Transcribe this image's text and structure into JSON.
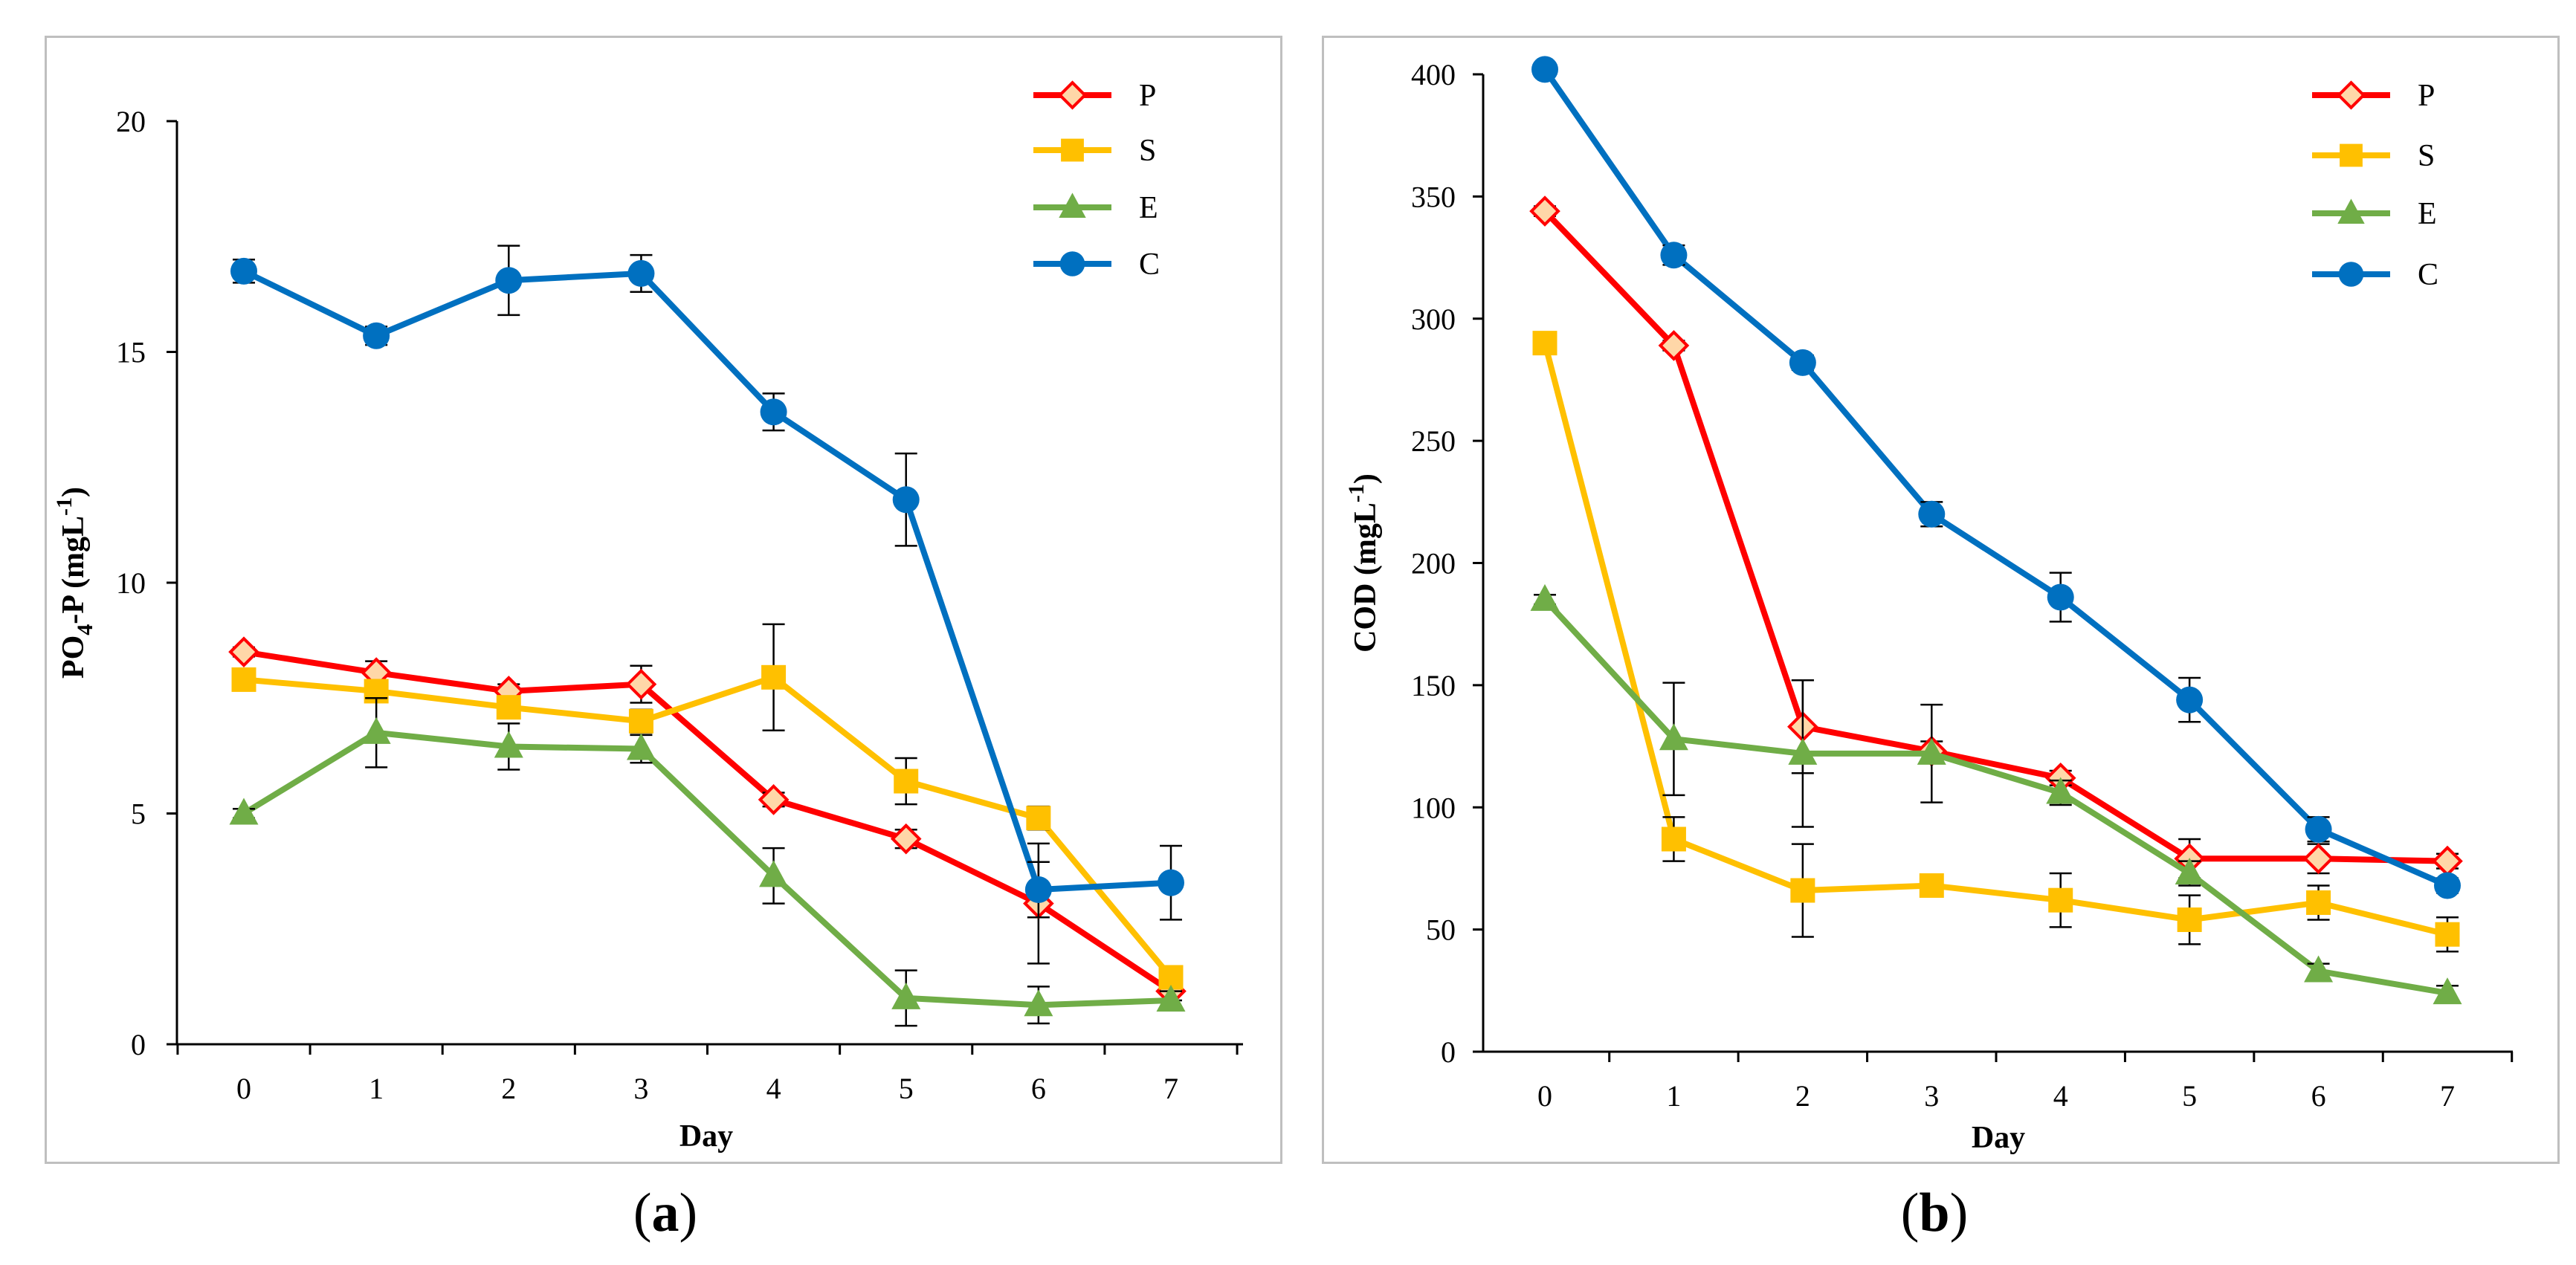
{
  "colors": {
    "P": "#ff0000",
    "S": "#ffc000",
    "E": "#70ad47",
    "C": "#0070c0",
    "errorbar": "#000000",
    "frame": "#bfbfbf"
  },
  "panels": [
    {
      "label": "a",
      "open": "(",
      "close": ")"
    },
    {
      "label": "b",
      "open": "(",
      "close": ")"
    }
  ],
  "chart_data": [
    {
      "type": "line",
      "panel": "a",
      "title": "",
      "xlabel": "Day",
      "ylabel_main": "PO",
      "ylabel_sub": "4",
      "ylabel_mid": "-P (mgL",
      "ylabel_sup": "-1",
      "ylabel_end": ")",
      "x": [
        0,
        1,
        2,
        3,
        4,
        5,
        6,
        7
      ],
      "xticks": [
        "0",
        "1",
        "2",
        "3",
        "4",
        "5",
        "6",
        "7"
      ],
      "ylim": [
        0,
        20
      ],
      "yticks": [
        0,
        5,
        10,
        15,
        20
      ],
      "legend_position": "top-right",
      "series": [
        {
          "name": "P",
          "marker": "diamond",
          "values": [
            8.5,
            8.05,
            7.65,
            7.8,
            5.3,
            4.45,
            3.05,
            1.15
          ],
          "errors": [
            0.1,
            0.25,
            0.15,
            0.4,
            0.15,
            0.2,
            1.3,
            0.2
          ]
        },
        {
          "name": "S",
          "marker": "square",
          "values": [
            7.9,
            7.65,
            7.3,
            7.0,
            7.95,
            5.7,
            4.9,
            1.45
          ],
          "errors": [
            0.1,
            0.2,
            0.2,
            0.25,
            1.15,
            0.5,
            0.25,
            0.2
          ]
        },
        {
          "name": "E",
          "marker": "triangle",
          "values": [
            5.0,
            6.75,
            6.45,
            6.4,
            3.65,
            1.0,
            0.85,
            0.95
          ],
          "errors": [
            0.1,
            0.75,
            0.5,
            0.3,
            0.6,
            0.6,
            0.4,
            0.2
          ]
        },
        {
          "name": "C",
          "marker": "circle",
          "values": [
            16.75,
            15.35,
            16.55,
            16.7,
            13.7,
            11.8,
            3.35,
            3.5
          ],
          "errors": [
            0.25,
            0.2,
            0.75,
            0.4,
            0.4,
            1.0,
            0.6,
            0.8
          ]
        }
      ]
    },
    {
      "type": "line",
      "panel": "b",
      "title": "",
      "xlabel": "Day",
      "ylabel_main": "COD",
      "ylabel_sub": "",
      "ylabel_mid": " (mgL",
      "ylabel_sup": "-1",
      "ylabel_end": ")",
      "x": [
        0,
        1,
        2,
        3,
        4,
        5,
        6,
        7
      ],
      "xticks": [
        "0",
        "1",
        "2",
        "3",
        "4",
        "5",
        "6",
        "7"
      ],
      "ylim": [
        0,
        400
      ],
      "yticks": [
        0,
        50,
        100,
        150,
        200,
        250,
        300,
        350,
        400
      ],
      "legend_position": "top-right",
      "series": [
        {
          "name": "P",
          "marker": "diamond",
          "values": [
            344,
            289,
            133,
            123,
            112,
            79,
            79,
            78
          ],
          "errors": [
            2,
            2,
            19,
            4,
            3,
            8,
            6,
            3
          ]
        },
        {
          "name": "S",
          "marker": "square",
          "values": [
            290,
            87,
            66,
            68,
            62,
            54,
            61,
            48
          ],
          "errors": [
            2,
            9,
            19,
            4,
            11,
            10,
            7,
            7
          ]
        },
        {
          "name": "E",
          "marker": "triangle",
          "values": [
            185,
            128,
            122,
            122,
            106,
            73,
            33,
            24
          ],
          "errors": [
            2,
            23,
            30,
            20,
            5,
            5,
            3,
            3
          ]
        },
        {
          "name": "C",
          "marker": "circle",
          "values": [
            402,
            326,
            282,
            220,
            186,
            144,
            91,
            68
          ],
          "errors": [
            2,
            4,
            3,
            5,
            10,
            9,
            5,
            3
          ]
        }
      ]
    }
  ]
}
